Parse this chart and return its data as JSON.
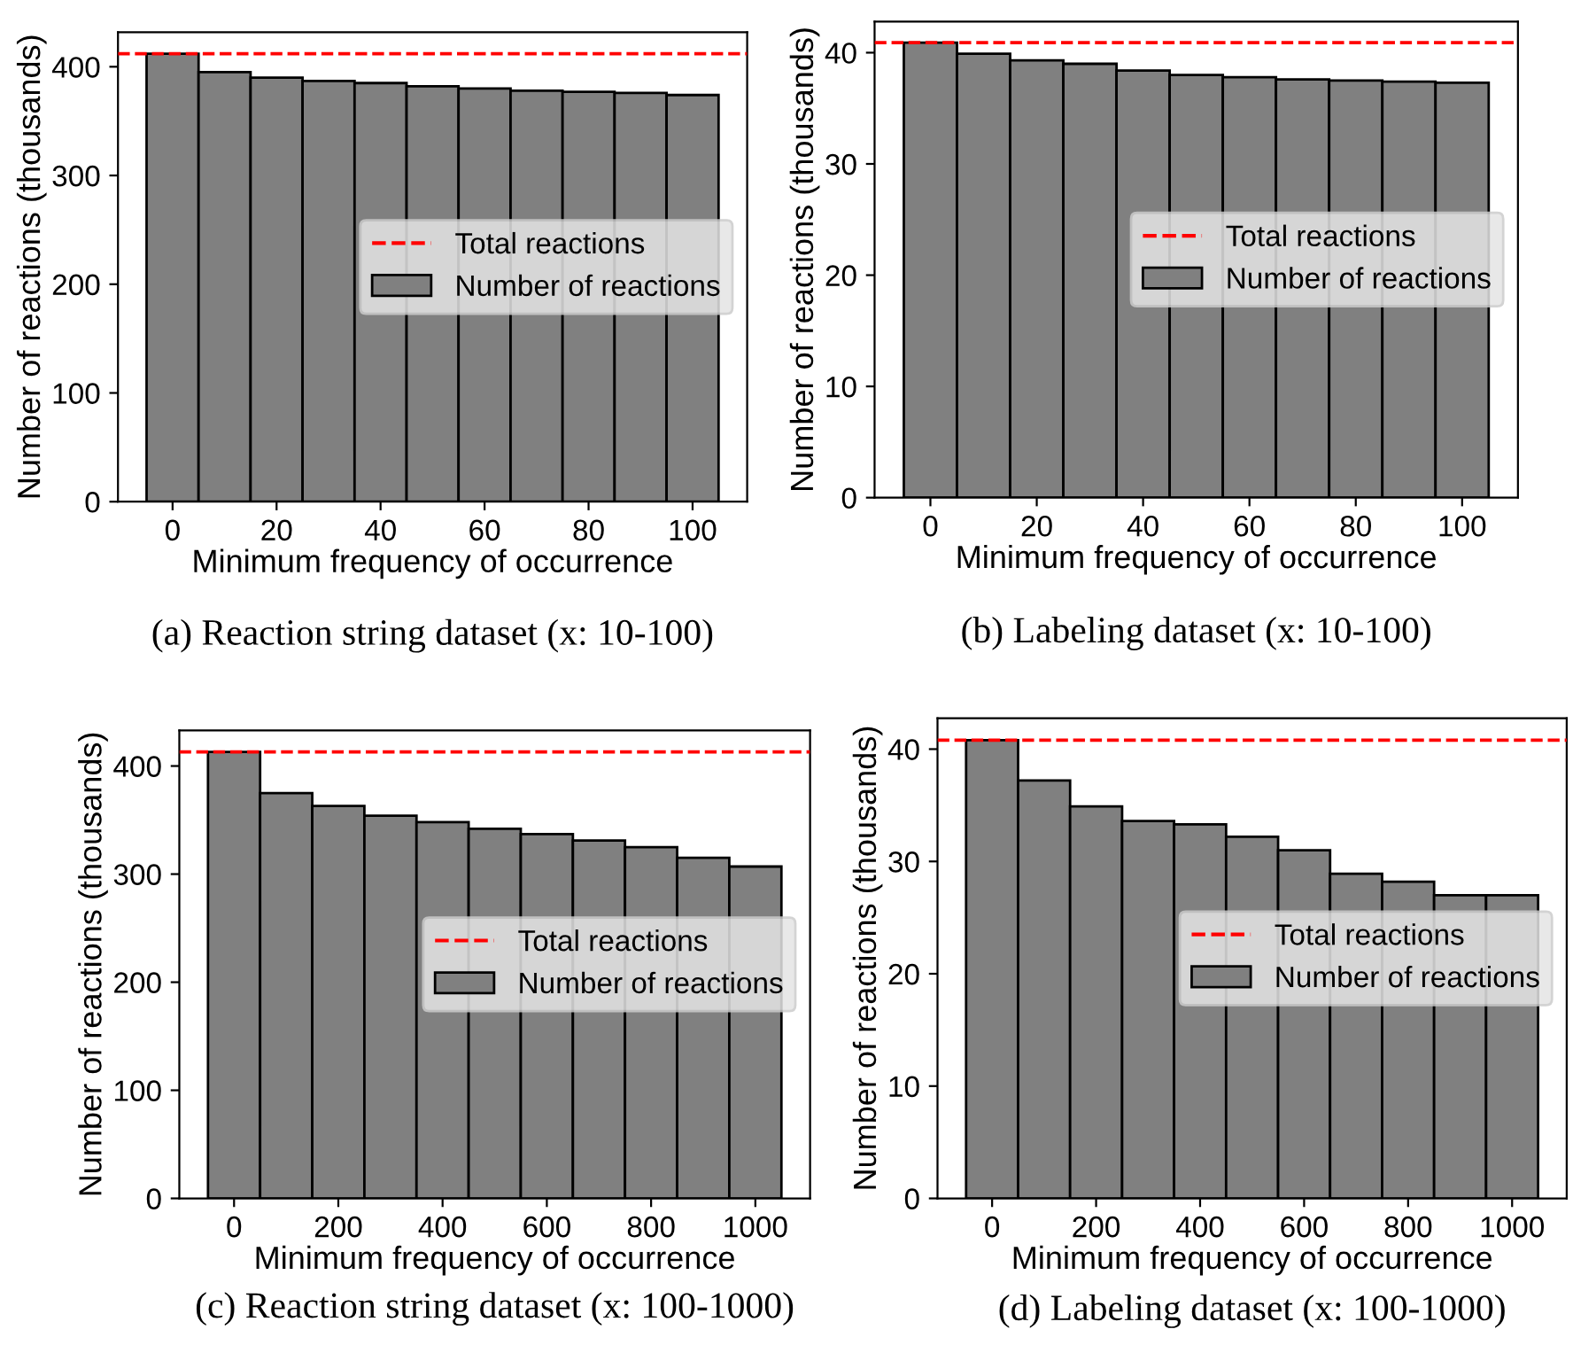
{
  "chart_data": [
    {
      "type": "bar",
      "x": [
        0,
        10,
        20,
        30,
        40,
        50,
        60,
        70,
        80,
        90,
        100
      ],
      "xlabel": "Minimum frequency of occurrence",
      "ylabel": "Number of reactions (thousands)",
      "series": [
        {
          "name": "Number of reactions",
          "color": "#808080",
          "values": [
            412,
            395,
            390,
            387,
            385,
            382,
            380,
            378,
            377,
            376,
            374
          ]
        }
      ],
      "xlim": [
        -10.5,
        110.5
      ],
      "xticks": [
        0,
        20,
        40,
        60,
        80,
        100
      ],
      "ylim": [
        0,
        431.7
      ],
      "yticks": [
        0,
        100,
        200,
        300,
        400
      ],
      "ref_lines": [
        {
          "axis": "y",
          "value": 412,
          "label": "Total reactions",
          "color": "#ff0000",
          "line_style": "dashed"
        }
      ],
      "legend": "right",
      "annotations": [
        "(a) Reaction string dataset (x: 10-100)"
      ]
    },
    {
      "type": "bar",
      "x": [
        0,
        10,
        20,
        30,
        40,
        50,
        60,
        70,
        80,
        90,
        100
      ],
      "xlabel": "Minimum frequency of occurrence",
      "ylabel": "Number of reactions (thousands)",
      "series": [
        {
          "name": "Number of reactions",
          "color": "#808080",
          "values": [
            40.9,
            39.9,
            39.3,
            39.0,
            38.4,
            38.0,
            37.8,
            37.6,
            37.5,
            37.4,
            37.3
          ]
        }
      ],
      "xlim": [
        -10.5,
        110.5
      ],
      "xticks": [
        0,
        20,
        40,
        60,
        80,
        100
      ],
      "ylim": [
        0,
        42.8
      ],
      "yticks": [
        0,
        10,
        20,
        30,
        40
      ],
      "ref_lines": [
        {
          "axis": "y",
          "value": 40.9,
          "label": "Total reactions",
          "color": "#ff0000",
          "line_style": "dashed"
        }
      ],
      "legend": "right",
      "annotations": [
        "(b) Labeling dataset (x: 10-100)"
      ]
    },
    {
      "type": "bar",
      "x": [
        0,
        100,
        200,
        300,
        400,
        500,
        600,
        700,
        800,
        900,
        1000
      ],
      "xlabel": "Minimum frequency of occurrence",
      "ylabel": "Number of reactions (thousands)",
      "series": [
        {
          "name": "Number of reactions",
          "color": "#808080",
          "values": [
            413,
            375,
            363,
            354,
            348,
            342,
            337,
            331,
            325,
            315,
            307
          ]
        }
      ],
      "xlim": [
        -105,
        1105
      ],
      "xticks": [
        0,
        200,
        400,
        600,
        800,
        1000
      ],
      "ylim": [
        0,
        433
      ],
      "yticks": [
        0,
        100,
        200,
        300,
        400
      ],
      "ref_lines": [
        {
          "axis": "y",
          "value": 413,
          "label": "Total reactions",
          "color": "#ff0000",
          "line_style": "dashed"
        }
      ],
      "legend": "right",
      "annotations": [
        "(c) Reaction string dataset (x: 100-1000)"
      ]
    },
    {
      "type": "bar",
      "x": [
        0,
        100,
        200,
        300,
        400,
        500,
        600,
        700,
        800,
        900,
        1000
      ],
      "xlabel": "Minimum frequency of occurrence",
      "ylabel": "Number of reactions (thousands)",
      "series": [
        {
          "name": "Number of reactions",
          "color": "#808080",
          "values": [
            40.8,
            37.2,
            34.9,
            33.6,
            33.3,
            32.2,
            31.0,
            28.9,
            28.2,
            27.0,
            27.0
          ]
        }
      ],
      "xlim": [
        -105,
        1105
      ],
      "xticks": [
        0,
        200,
        400,
        600,
        800,
        1000
      ],
      "ylim": [
        0,
        42.75
      ],
      "yticks": [
        0,
        10,
        20,
        30,
        40
      ],
      "ref_lines": [
        {
          "axis": "y",
          "value": 40.8,
          "label": "Total reactions",
          "color": "#ff0000",
          "line_style": "dashed"
        }
      ],
      "legend": "right",
      "annotations": [
        "(d) Labeling dataset (x: 100-1000)"
      ]
    }
  ]
}
